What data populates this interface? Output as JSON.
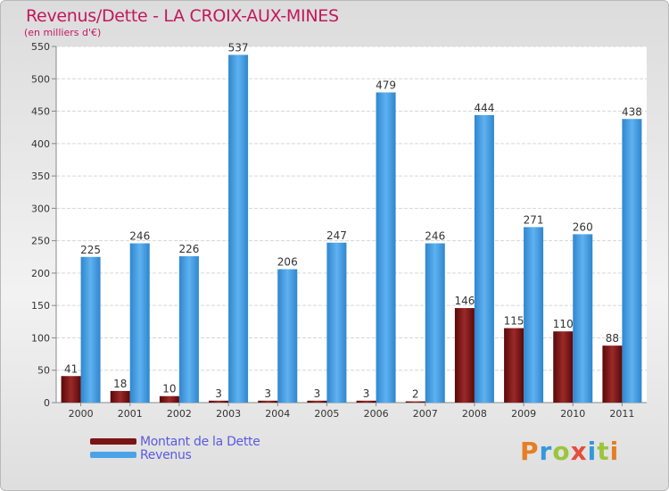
{
  "title": "Revenus/Dette - LA CROIX-AUX-MINES",
  "subtitle": "(en milliers d'€)",
  "brand": {
    "letters": [
      "P",
      "r",
      "o",
      "x",
      "i",
      "t",
      "i"
    ],
    "colors": [
      "#e67e22",
      "#3498db",
      "#9bc53d",
      "#e74c3c",
      "#3498db",
      "#9bc53d",
      "#e67e22"
    ]
  },
  "legend": [
    {
      "label": "Montant de la Dette",
      "color": "#7a1414"
    },
    {
      "label": "Revenus",
      "color": "#4aa3e8"
    }
  ],
  "chart_data": {
    "type": "bar",
    "title": "Revenus/Dette - LA CROIX-AUX-MINES",
    "ylabel": "(en milliers d'€)",
    "xlabel": "",
    "ylim": [
      0,
      550
    ],
    "yticks": [
      0,
      50,
      100,
      150,
      200,
      250,
      300,
      350,
      400,
      450,
      500,
      550
    ],
    "categories": [
      "2000",
      "2001",
      "2002",
      "2003",
      "2004",
      "2005",
      "2006",
      "2007",
      "2008",
      "2009",
      "2010",
      "2011"
    ],
    "series": [
      {
        "name": "Montant de la Dette",
        "values": [
          41,
          18,
          10,
          3,
          3,
          3,
          3,
          2,
          146,
          115,
          110,
          88
        ]
      },
      {
        "name": "Revenus",
        "values": [
          225,
          246,
          226,
          537,
          206,
          247,
          479,
          246,
          444,
          271,
          260,
          438
        ]
      }
    ],
    "grid": true
  }
}
